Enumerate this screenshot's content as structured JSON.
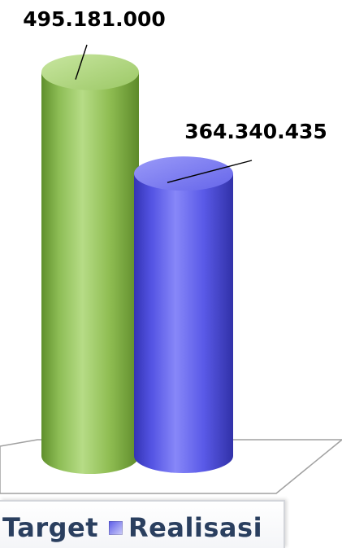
{
  "chart_data": {
    "type": "bar",
    "style": "3d-cylinder",
    "categories": [
      ""
    ],
    "series": [
      {
        "name": "Target",
        "values": [
          495181000
        ],
        "value_label": "495.181.000",
        "color": "#8fbd52"
      },
      {
        "name": "Realisasi",
        "values": [
          364340435
        ],
        "value_label": "364.340.435",
        "color": "#5a5ae8"
      }
    ],
    "ylim": [
      0,
      520000000
    ],
    "legend_position": "bottom",
    "grid": false,
    "xlabel": "",
    "ylabel": ""
  },
  "legend": {
    "items": [
      {
        "label": "Target",
        "color": "#8fbd52"
      },
      {
        "label": "Realisasi",
        "color": "#5a5ae8"
      }
    ]
  }
}
